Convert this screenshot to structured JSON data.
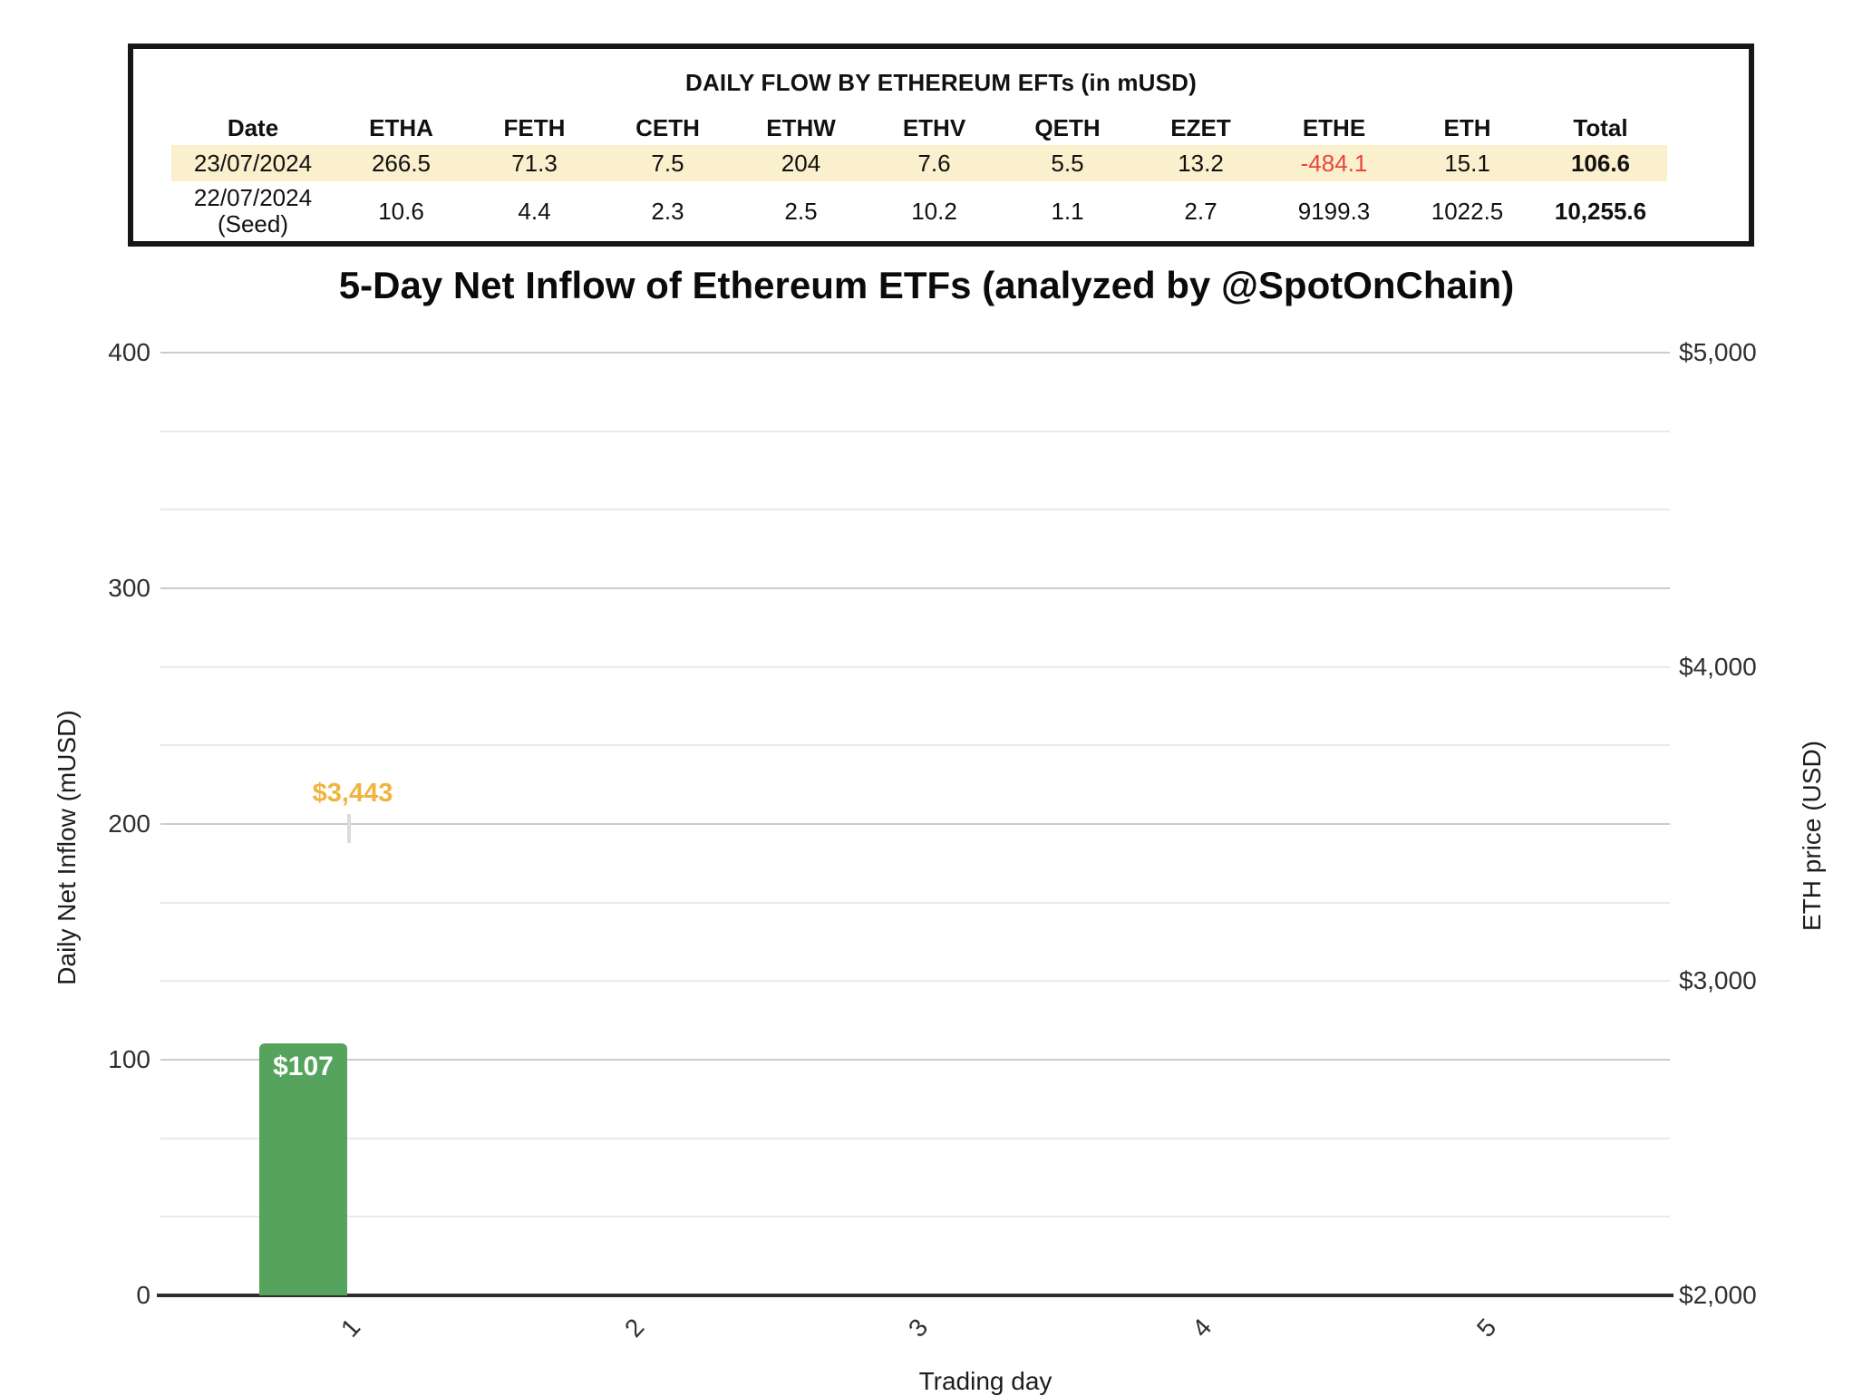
{
  "table": {
    "title": "DAILY FLOW BY ETHEREUM EFTs (in mUSD)",
    "columns": [
      "Date",
      "ETHA",
      "FETH",
      "CETH",
      "ETHW",
      "ETHV",
      "QETH",
      "EZET",
      "ETHE",
      "ETH",
      "Total"
    ],
    "rows": [
      {
        "highlighted": true,
        "cells": [
          "23/07/2024",
          "266.5",
          "71.3",
          "7.5",
          "204",
          "7.6",
          "5.5",
          "13.2",
          "-484.1",
          "15.1",
          "106.6"
        ]
      },
      {
        "highlighted": false,
        "cells": [
          "22/07/2024\n(Seed)",
          "10.6",
          "4.4",
          "2.3",
          "2.5",
          "10.2",
          "1.1",
          "2.7",
          "9199.3",
          "1022.5",
          "10,255.6"
        ]
      }
    ],
    "highlight_color": "#FAF0CE",
    "negative_color": "#E8463A"
  },
  "chart_data": {
    "type": "bar",
    "title": "5-Day Net Inflow of Ethereum ETFs (analyzed by @SpotOnChain)",
    "xlabel": "Trading day",
    "categories": [
      "1",
      "2",
      "3",
      "4",
      "5"
    ],
    "left_axis": {
      "title": "Daily Net Inflow (mUSD)",
      "min": 0,
      "max": 400,
      "ticks": [
        0,
        100,
        200,
        300,
        400
      ],
      "minor_step": 33.333
    },
    "right_axis": {
      "title": "ETH price (USD)",
      "min": 2000,
      "max": 5000,
      "ticks": [
        2000,
        3000,
        4000,
        5000
      ],
      "tick_labels": [
        "$2,000",
        "$3,000",
        "$4,000",
        "$5,000"
      ]
    },
    "series": [
      {
        "name": "Daily Net Inflow (mUSD)",
        "type": "bar",
        "axis": "left",
        "color": "#55A35C",
        "label_color": "#FFFFFF",
        "values": [
          107,
          null,
          null,
          null,
          null
        ],
        "point_labels": [
          "$107",
          null,
          null,
          null,
          null
        ]
      },
      {
        "name": "ETH price (USD)",
        "type": "tick",
        "axis": "right",
        "color": "#DCDCDC",
        "label_color": "#F0B43E",
        "values": [
          3443,
          null,
          null,
          null,
          null
        ],
        "point_labels": [
          "$3,443",
          null,
          null,
          null,
          null
        ]
      }
    ],
    "grid": {
      "show": true
    },
    "legend": "none"
  }
}
